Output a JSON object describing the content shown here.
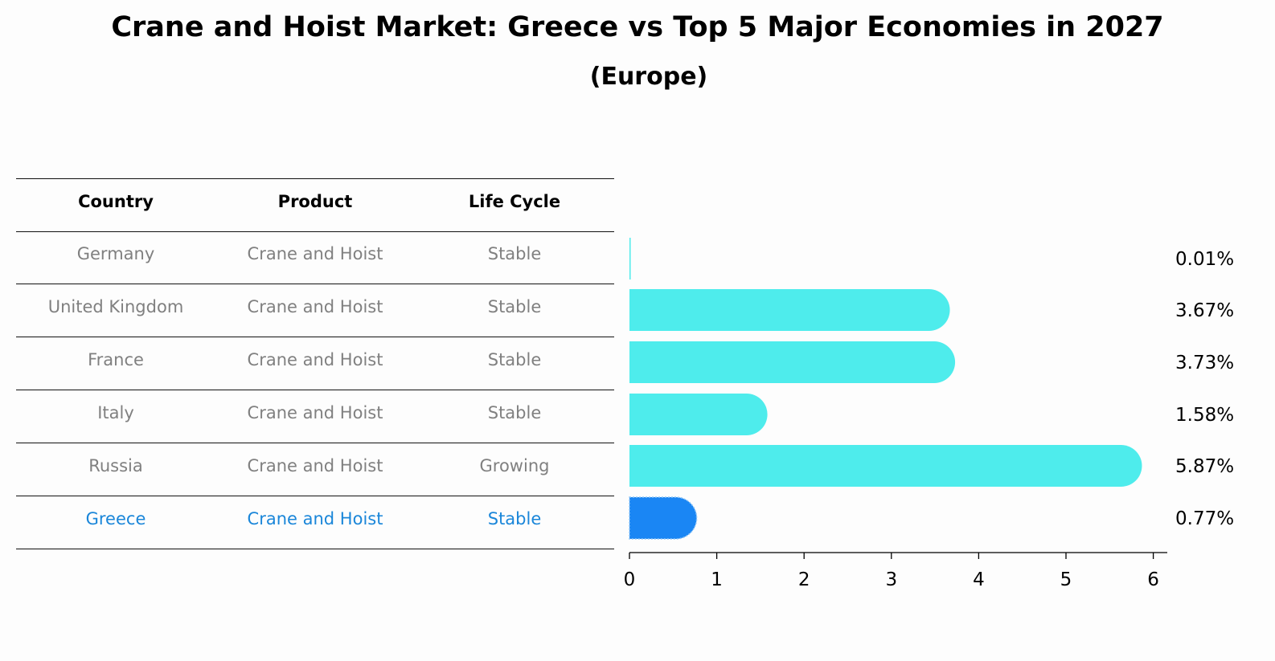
{
  "title": "Crane and Hoist Market: Greece vs Top 5 Major Economies in 2027",
  "subtitle": "(Europe)",
  "table": {
    "headers": [
      "Country",
      "Product",
      "Life Cycle"
    ],
    "rows": [
      [
        "Germany",
        "Crane and Hoist",
        "Stable"
      ],
      [
        "United Kingdom",
        "Crane and Hoist",
        "Stable"
      ],
      [
        "France",
        "Crane and Hoist",
        "Stable"
      ],
      [
        "Italy",
        "Crane and Hoist",
        "Stable"
      ],
      [
        "Russia",
        "Crane and Hoist",
        "Growing"
      ],
      [
        "Greece",
        "Crane and Hoist",
        "Stable"
      ]
    ]
  },
  "chart_data": {
    "type": "bar",
    "orientation": "horizontal",
    "categories": [
      "Germany",
      "United Kingdom",
      "France",
      "Italy",
      "Russia",
      "Greece"
    ],
    "values": [
      0.01,
      3.67,
      3.73,
      1.58,
      5.87,
      0.77
    ],
    "data_labels": [
      "0.01%",
      "3.67%",
      "3.73%",
      "1.58%",
      "5.87%",
      "0.77%"
    ],
    "xlim": [
      0,
      6
    ],
    "xticks": [
      "0",
      "1",
      "2",
      "3",
      "4",
      "5",
      "6"
    ],
    "highlight": "Greece",
    "colors": {
      "bar": "#4eecec",
      "highlight": "#1a86f4",
      "highlight_text": "#1a86d9"
    },
    "grid": false
  }
}
